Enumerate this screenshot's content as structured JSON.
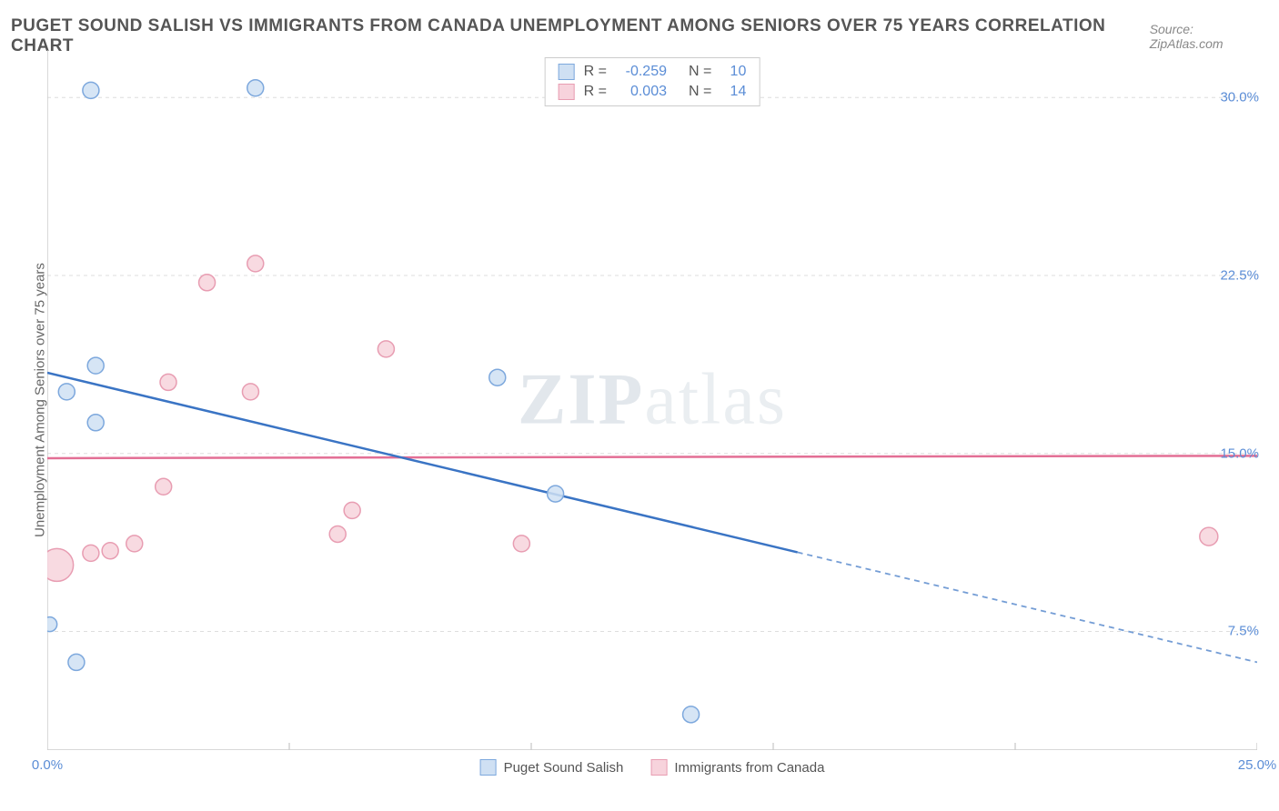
{
  "header": {
    "title": "PUGET SOUND SALISH VS IMMIGRANTS FROM CANADA UNEMPLOYMENT AMONG SENIORS OVER 75 YEARS CORRELATION CHART",
    "source": "Source: ZipAtlas.com"
  },
  "watermark": {
    "bold": "ZIP",
    "light": "atlas"
  },
  "chart": {
    "type": "scatter",
    "y_axis_title": "Unemployment Among Seniors over 75 years",
    "background_color": "#ffffff",
    "grid_color": "#dedede",
    "axis_line_color": "#cccccc",
    "tick_label_color": "#5b8dd6",
    "xlim": [
      0,
      25
    ],
    "ylim": [
      2.5,
      32
    ],
    "x_ticks": [
      0,
      5,
      10,
      15,
      20,
      25
    ],
    "x_tick_labels": [
      "0.0%",
      "",
      "",
      "",
      "",
      "25.0%"
    ],
    "y_ticks": [
      7.5,
      15.0,
      22.5,
      30.0
    ],
    "y_tick_labels": [
      "7.5%",
      "15.0%",
      "22.5%",
      "30.0%"
    ],
    "series": [
      {
        "name": "Puget Sound Salish",
        "fill": "#cfe0f3",
        "stroke": "#7da8dd",
        "line_color": "#3a74c4",
        "r_value": "-0.259",
        "n_value": "10",
        "trend": {
          "x1": 0,
          "y1": 18.4,
          "x2": 25,
          "y2": 6.2,
          "solid_until_x": 15.5
        },
        "points": [
          {
            "x": 0.9,
            "y": 30.3,
            "r": 9
          },
          {
            "x": 4.3,
            "y": 30.4,
            "r": 9
          },
          {
            "x": 0.4,
            "y": 17.6,
            "r": 9
          },
          {
            "x": 1.0,
            "y": 18.7,
            "r": 9
          },
          {
            "x": 1.0,
            "y": 16.3,
            "r": 9
          },
          {
            "x": 9.3,
            "y": 18.2,
            "r": 9
          },
          {
            "x": 10.5,
            "y": 13.3,
            "r": 9
          },
          {
            "x": 0.05,
            "y": 7.8,
            "r": 8
          },
          {
            "x": 0.6,
            "y": 6.2,
            "r": 9
          },
          {
            "x": 13.3,
            "y": 4.0,
            "r": 9
          }
        ]
      },
      {
        "name": "Immigrants from Canada",
        "fill": "#f7d3dc",
        "stroke": "#e89db2",
        "line_color": "#e36f95",
        "r_value": "0.003",
        "n_value": "14",
        "trend": {
          "x1": 0,
          "y1": 14.8,
          "x2": 25,
          "y2": 14.9,
          "solid_until_x": 25
        },
        "points": [
          {
            "x": 3.3,
            "y": 22.2,
            "r": 9
          },
          {
            "x": 4.3,
            "y": 23.0,
            "r": 9
          },
          {
            "x": 2.5,
            "y": 18.0,
            "r": 9
          },
          {
            "x": 4.2,
            "y": 17.6,
            "r": 9
          },
          {
            "x": 7.0,
            "y": 19.4,
            "r": 9
          },
          {
            "x": 2.4,
            "y": 13.6,
            "r": 9
          },
          {
            "x": 6.3,
            "y": 12.6,
            "r": 9
          },
          {
            "x": 6.0,
            "y": 11.6,
            "r": 9
          },
          {
            "x": 9.8,
            "y": 11.2,
            "r": 9
          },
          {
            "x": 0.2,
            "y": 10.3,
            "r": 18
          },
          {
            "x": 0.9,
            "y": 10.8,
            "r": 9
          },
          {
            "x": 1.3,
            "y": 10.9,
            "r": 9
          },
          {
            "x": 1.8,
            "y": 11.2,
            "r": 9
          },
          {
            "x": 24.0,
            "y": 11.5,
            "r": 10
          }
        ]
      }
    ],
    "legend_stats": {
      "labels": {
        "r": "R =",
        "n": "N ="
      }
    },
    "bottom_legend": [
      {
        "label": "Puget Sound Salish",
        "fill": "#cfe0f3",
        "stroke": "#7da8dd"
      },
      {
        "label": "Immigrants from Canada",
        "fill": "#f7d3dc",
        "stroke": "#e89db2"
      }
    ]
  }
}
